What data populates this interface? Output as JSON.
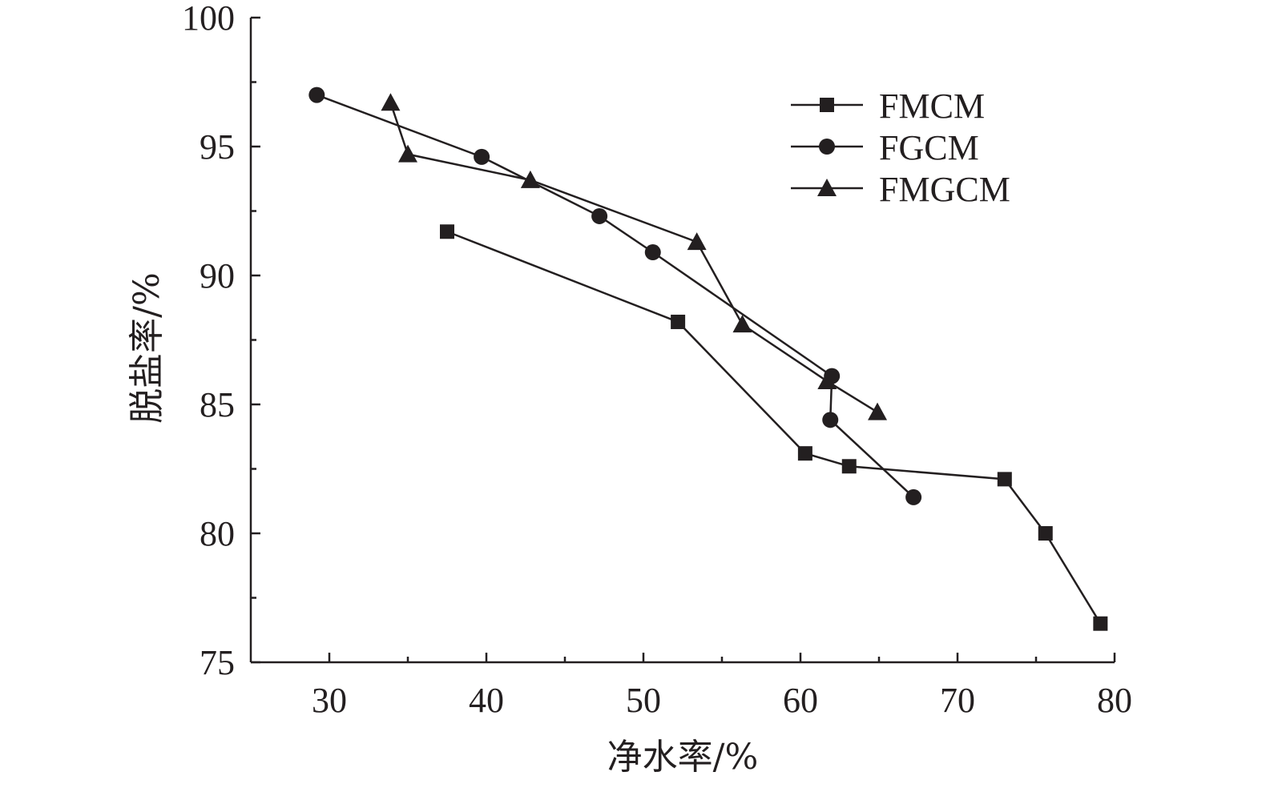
{
  "chart_data": {
    "type": "line",
    "title": "",
    "xlabel": "净水率/%",
    "ylabel": "脱盐率/%",
    "xlim": [
      25,
      80
    ],
    "ylim": [
      75,
      100
    ],
    "x_ticks": [
      30,
      40,
      50,
      60,
      70,
      80
    ],
    "x_tick_labels": [
      "30",
      "40",
      "50",
      "60",
      "70",
      "80"
    ],
    "x_minor_ticks": [
      35,
      45,
      55,
      65,
      75
    ],
    "y_ticks": [
      75,
      80,
      85,
      90,
      95,
      100
    ],
    "y_tick_labels": [
      "75",
      "80",
      "85",
      "90",
      "95",
      "100"
    ],
    "y_minor_ticks": [
      77.5,
      82.5,
      87.5,
      92.5,
      97.5
    ],
    "grid": false,
    "legend_position": "top-right",
    "series": [
      {
        "name": "FMCM",
        "marker": "square",
        "color": "#231f20",
        "x": [
          37.5,
          52.2,
          60.3,
          63.1,
          73.0,
          75.6,
          79.1
        ],
        "y": [
          91.7,
          88.2,
          83.1,
          82.6,
          82.1,
          80.0,
          76.5
        ]
      },
      {
        "name": "FGCM",
        "marker": "circle",
        "color": "#231f20",
        "x": [
          29.2,
          39.7,
          47.2,
          50.6,
          62.0,
          61.9,
          67.2
        ],
        "y": [
          97.0,
          94.6,
          92.3,
          90.9,
          86.1,
          84.4,
          81.4
        ]
      },
      {
        "name": "FMGCM",
        "marker": "triangle",
        "color": "#231f20",
        "x": [
          33.9,
          35.0,
          42.8,
          53.4,
          56.3,
          61.7,
          64.9
        ],
        "y": [
          96.7,
          94.7,
          93.7,
          91.3,
          88.1,
          85.9,
          84.7
        ]
      }
    ]
  }
}
